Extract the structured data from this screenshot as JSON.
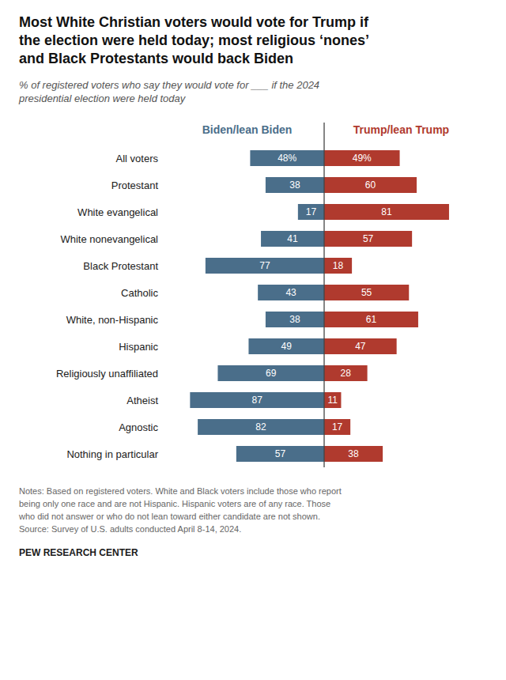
{
  "chart_data": {
    "type": "bar",
    "orientation": "horizontal",
    "title": "Most White Christian voters would vote for Trump if\nthe election were held today; most religious ‘nones’\nand Black Protestants would back Biden",
    "subtitle": "% of registered voters who say they would vote for ___ if the 2024\npresidential election were held today",
    "categories": [
      "All voters",
      "Protestant",
      "White evangelical",
      "White nonevangelical",
      "Black Protestant",
      "Catholic",
      "White, non-Hispanic",
      "Hispanic",
      "Religiously unaffiliated",
      "Atheist",
      "Agnostic",
      "Nothing in particular"
    ],
    "series": [
      {
        "name": "Biden/lean Biden",
        "color": "#4a6e8a",
        "values": [
          48,
          38,
          17,
          41,
          77,
          43,
          38,
          49,
          69,
          87,
          82,
          57
        ],
        "value_labels": [
          "48%",
          "38",
          "17",
          "41",
          "77",
          "43",
          "38",
          "49",
          "69",
          "87",
          "82",
          "57"
        ]
      },
      {
        "name": "Trump/lean Trump",
        "color": "#b03a2e",
        "values": [
          49,
          60,
          81,
          57,
          18,
          55,
          61,
          47,
          28,
          11,
          17,
          38
        ],
        "value_labels": [
          "49%",
          "60",
          "81",
          "57",
          "18",
          "55",
          "61",
          "47",
          "28",
          "11",
          "17",
          "38"
        ]
      }
    ],
    "xlim": [
      0,
      100
    ],
    "data_labels": true,
    "tick_labels": false,
    "grid": false,
    "notes": "Notes: Based on registered voters. White and Black voters include those who report\nbeing only one race and are not Hispanic. Hispanic voters are of any race. Those\nwho did not answer or who do not lean toward either candidate are not shown.\nSource: Survey of U.S. adults conducted April 8-14, 2024.",
    "source": "PEW RESEARCH CENTER"
  }
}
